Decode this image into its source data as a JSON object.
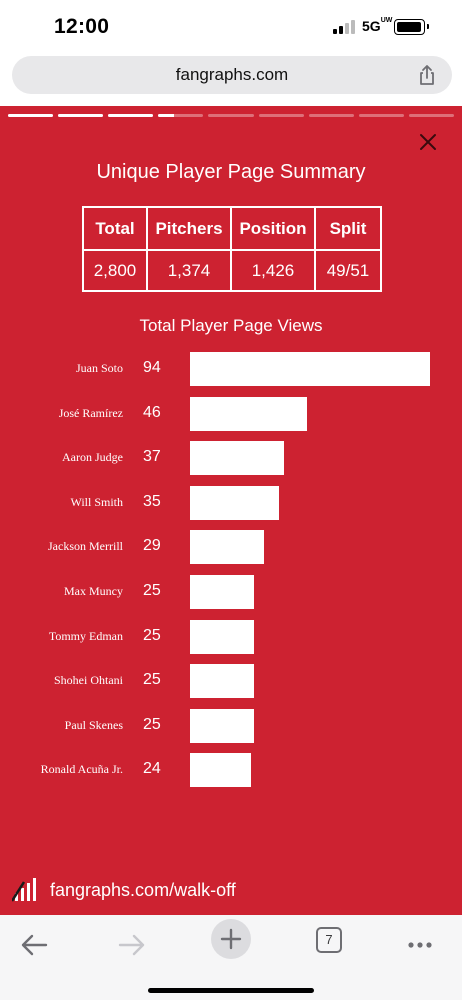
{
  "status_bar": {
    "time": "12:00",
    "network": "5G",
    "network_sup": "UW"
  },
  "browser": {
    "url": "fangraphs.com",
    "tab_count": "7"
  },
  "story": {
    "progress_segments": 9,
    "progress_current_index": 3,
    "progress_current_fill": 0.35
  },
  "panel": {
    "title": "Unique Player Page Summary",
    "table": {
      "headers": [
        "Total",
        "Pitchers",
        "Position",
        "Split"
      ],
      "values": [
        "2,800",
        "1,374",
        "1,426",
        "49/51"
      ]
    },
    "chart_title": "Total Player Page Views",
    "footer": "fangraphs.com/walk-off"
  },
  "chart_data": {
    "type": "bar",
    "orientation": "horizontal",
    "title": "Total Player Page Views",
    "categories": [
      "Juan Soto",
      "José Ramírez",
      "Aaron Judge",
      "Will Smith",
      "Jackson Merrill",
      "Max Muncy",
      "Tommy Edman",
      "Shohei Ohtani",
      "Paul Skenes",
      "Ronald Acuña Jr."
    ],
    "values": [
      94,
      46,
      37,
      35,
      29,
      25,
      25,
      25,
      25,
      24
    ],
    "bar_color": "#ffffff",
    "background": "#cd2231"
  },
  "colors": {
    "accent": "#cd2231"
  }
}
